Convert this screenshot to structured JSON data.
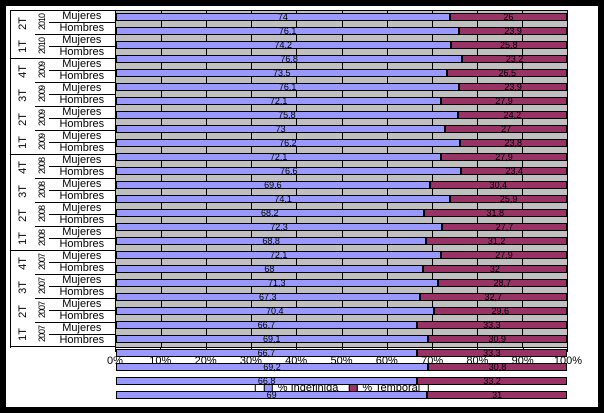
{
  "chart_data": {
    "type": "bar",
    "orientation": "horizontal",
    "stacked": true,
    "title": "",
    "xlabel": "",
    "ylabel": "",
    "xlim": [
      0,
      100
    ],
    "x_ticks": [
      "0%",
      "10%",
      "20%",
      "30%",
      "40%",
      "50%",
      "60%",
      "70%",
      "80%",
      "90%",
      "100%"
    ],
    "grid": true,
    "plot_bg_color": "#C0C0C0",
    "legend_position": "bottom",
    "legend": [
      {
        "name": "% Indefinida",
        "color": "#9999FF"
      },
      {
        "name": "% Temporal",
        "color": "#993366"
      }
    ],
    "groups": [
      {
        "quarter": "2T",
        "year": "2010",
        "rows": [
          {
            "label": "Mujeres",
            "indefinida": "74",
            "temporal": "26"
          },
          {
            "label": "Hombres",
            "indefinida": "76,1",
            "temporal": "23,9"
          }
        ]
      },
      {
        "quarter": "1T",
        "year": "2010",
        "rows": [
          {
            "label": "Mujeres",
            "indefinida": "74,2",
            "temporal": "25,8"
          },
          {
            "label": "Hombres",
            "indefinida": "76,8",
            "temporal": "23,2"
          }
        ]
      },
      {
        "quarter": "4T",
        "year": "2009",
        "rows": [
          {
            "label": "Mujeres",
            "indefinida": "73,5",
            "temporal": "26,5"
          },
          {
            "label": "Hombres",
            "indefinida": "76,1",
            "temporal": "23,9"
          }
        ]
      },
      {
        "quarter": "3T",
        "year": "2009",
        "rows": [
          {
            "label": "Mujeres",
            "indefinida": "72,1",
            "temporal": "27,9"
          },
          {
            "label": "Hombres",
            "indefinida": "75,8",
            "temporal": "24,2"
          }
        ]
      },
      {
        "quarter": "2T",
        "year": "2009",
        "rows": [
          {
            "label": "Mujeres",
            "indefinida": "73",
            "temporal": "27"
          },
          {
            "label": "Hombres",
            "indefinida": "76,2",
            "temporal": "23,8"
          }
        ]
      },
      {
        "quarter": "1T",
        "year": "2009",
        "rows": [
          {
            "label": "Mujeres",
            "indefinida": "72,1",
            "temporal": "27,9"
          },
          {
            "label": "Hombres",
            "indefinida": "76,6",
            "temporal": "23,4"
          }
        ]
      },
      {
        "quarter": "4T",
        "year": "2008",
        "rows": [
          {
            "label": "Mujeres",
            "indefinida": "69,6",
            "temporal": "30,4"
          },
          {
            "label": "Hombres",
            "indefinida": "74,1",
            "temporal": "25,9"
          }
        ]
      },
      {
        "quarter": "3T",
        "year": "2008",
        "rows": [
          {
            "label": "Mujeres",
            "indefinida": "68,2",
            "temporal": "31,8"
          },
          {
            "label": "Hombres",
            "indefinida": "72,3",
            "temporal": "27,7"
          }
        ]
      },
      {
        "quarter": "2T",
        "year": "2008",
        "rows": [
          {
            "label": "Mujeres",
            "indefinida": "68,8",
            "temporal": "31,2"
          },
          {
            "label": "Hombres",
            "indefinida": "72,1",
            "temporal": "27,9"
          }
        ]
      },
      {
        "quarter": "1T",
        "year": "2008",
        "rows": [
          {
            "label": "Mujeres",
            "indefinida": "68",
            "temporal": "32"
          },
          {
            "label": "Hombres",
            "indefinida": "71,3",
            "temporal": "28,7"
          }
        ]
      },
      {
        "quarter": "4T",
        "year": "2007",
        "rows": [
          {
            "label": "Mujeres",
            "indefinida": "67,3",
            "temporal": "32,7"
          },
          {
            "label": "Hombres",
            "indefinida": "70,4",
            "temporal": "29,6"
          }
        ]
      },
      {
        "quarter": "3T",
        "year": "2007",
        "rows": [
          {
            "label": "Mujeres",
            "indefinida": "66,7",
            "temporal": "33,3"
          },
          {
            "label": "Hombres",
            "indefinida": "69,1",
            "temporal": "30,9"
          }
        ]
      },
      {
        "quarter": "2T",
        "year": "2007",
        "rows": [
          {
            "label": "Mujeres",
            "indefinida": "66,7",
            "temporal": "33,3"
          },
          {
            "label": "Hombres",
            "indefinida": "69,2",
            "temporal": "30,8"
          }
        ]
      },
      {
        "quarter": "1T",
        "year": "2007",
        "rows": [
          {
            "label": "Mujeres",
            "indefinida": "66,8",
            "temporal": "33,2"
          },
          {
            "label": "Hombres",
            "indefinida": "69",
            "temporal": "31"
          }
        ]
      }
    ]
  }
}
